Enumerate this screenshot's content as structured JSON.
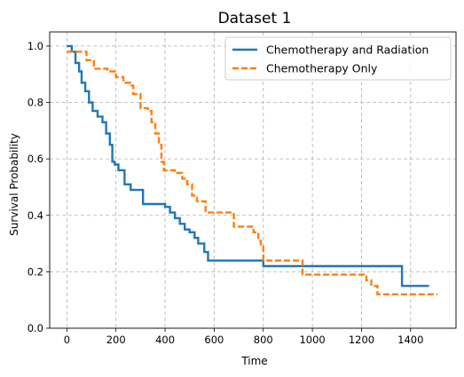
{
  "chart_data": {
    "type": "line",
    "step": true,
    "title": "Dataset 1",
    "xlabel": "Time",
    "ylabel": "Survival Probability",
    "xlim": [
      -70,
      1585
    ],
    "ylim": [
      0,
      1.05
    ],
    "xticks": [
      0,
      200,
      400,
      600,
      800,
      1000,
      1200,
      1400
    ],
    "yticks": [
      0.0,
      0.2,
      0.4,
      0.6,
      0.8,
      1.0
    ],
    "xtick_labels": [
      "0",
      "200",
      "400",
      "600",
      "800",
      "1000",
      "1200",
      "1400"
    ],
    "ytick_labels": [
      "0.0",
      "0.2",
      "0.4",
      "0.6",
      "0.8",
      "1.0"
    ],
    "grid": true,
    "legend_position": "top-right",
    "series": [
      {
        "name": "Chemotherapy and Radiation",
        "color": "#1f77b4",
        "linestyle": "solid",
        "x": [
          0,
          20,
          35,
          50,
          60,
          75,
          90,
          105,
          125,
          145,
          160,
          175,
          185,
          195,
          210,
          235,
          260,
          310,
          390,
          400,
          420,
          440,
          460,
          480,
          500,
          520,
          535,
          560,
          575,
          585,
          800,
          1365,
          1400,
          1475
        ],
        "y": [
          1.0,
          0.98,
          0.94,
          0.91,
          0.87,
          0.84,
          0.8,
          0.77,
          0.75,
          0.73,
          0.69,
          0.65,
          0.59,
          0.58,
          0.56,
          0.51,
          0.49,
          0.44,
          0.44,
          0.43,
          0.41,
          0.39,
          0.37,
          0.35,
          0.34,
          0.32,
          0.3,
          0.27,
          0.24,
          0.24,
          0.22,
          0.15,
          0.15,
          0.15
        ]
      },
      {
        "name": "Chemotherapy Only",
        "color": "#ff7f0e",
        "linestyle": "dashed",
        "x": [
          0,
          50,
          80,
          110,
          165,
          200,
          230,
          260,
          270,
          300,
          330,
          345,
          360,
          375,
          385,
          395,
          440,
          470,
          490,
          510,
          530,
          565,
          660,
          680,
          705,
          760,
          780,
          790,
          800,
          950,
          960,
          1000,
          1220,
          1240,
          1265,
          1510
        ],
        "y": [
          0.98,
          0.98,
          0.95,
          0.92,
          0.91,
          0.89,
          0.87,
          0.86,
          0.83,
          0.78,
          0.77,
          0.73,
          0.69,
          0.65,
          0.59,
          0.56,
          0.55,
          0.53,
          0.51,
          0.47,
          0.45,
          0.41,
          0.41,
          0.36,
          0.36,
          0.34,
          0.31,
          0.29,
          0.24,
          0.24,
          0.19,
          0.19,
          0.17,
          0.15,
          0.12,
          0.12
        ]
      }
    ]
  }
}
